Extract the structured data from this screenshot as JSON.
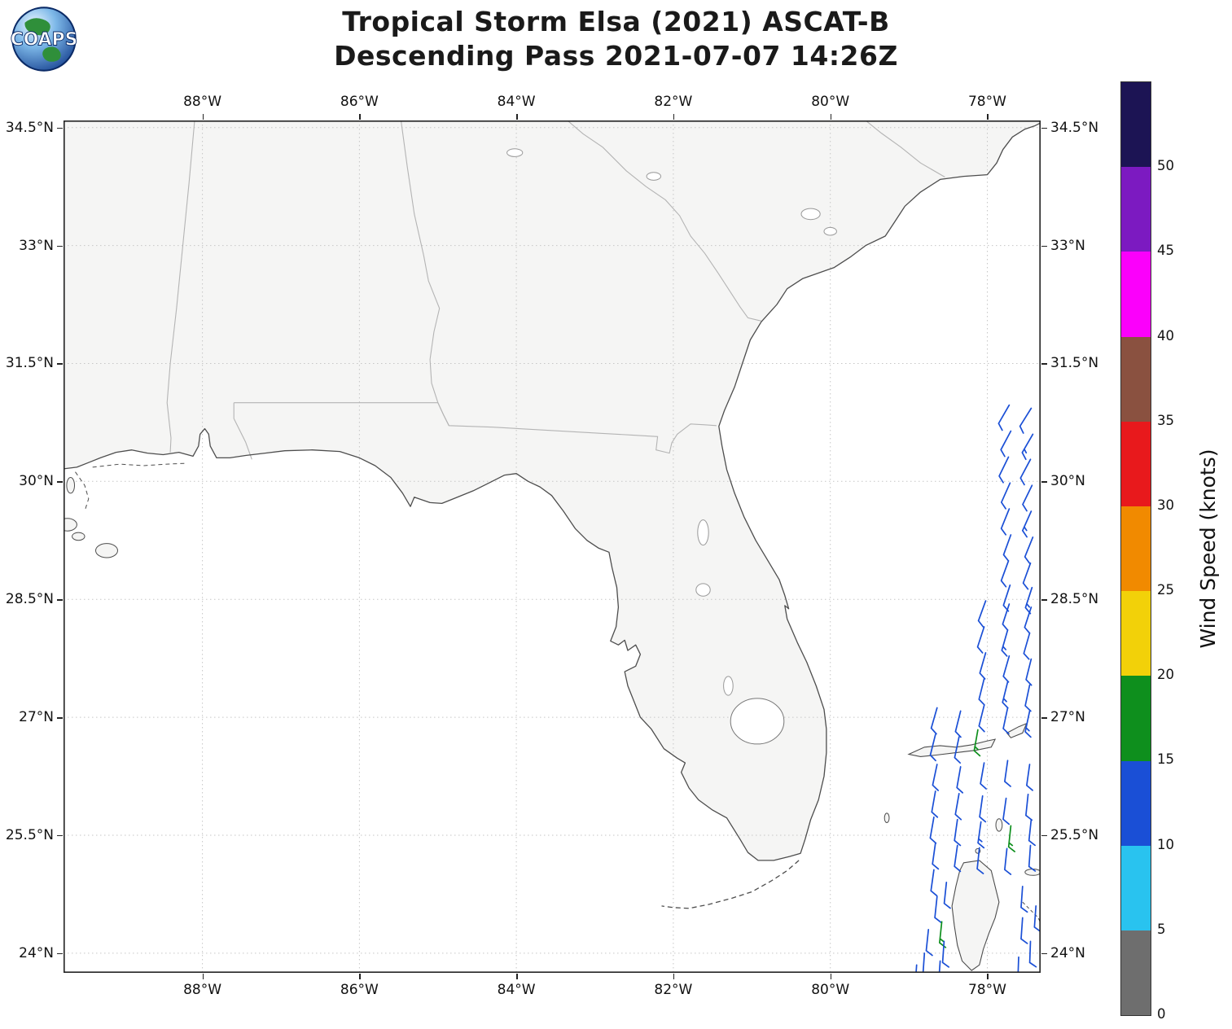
{
  "logo": {
    "text": "COAPS"
  },
  "title": {
    "line1": "Tropical Storm Elsa (2021) ASCAT-B",
    "line2": "Descending Pass 2021-07-07 14:26Z"
  },
  "map": {
    "extent": {
      "lon_min": -89.77,
      "lon_max": -77.32,
      "lat_min": 23.75,
      "lat_max": 34.59
    },
    "x_ticks": [
      {
        "label": "88°W",
        "value": -88
      },
      {
        "label": "86°W",
        "value": -86
      },
      {
        "label": "84°W",
        "value": -84
      },
      {
        "label": "82°W",
        "value": -82
      },
      {
        "label": "80°W",
        "value": -80
      },
      {
        "label": "78°W",
        "value": -78
      }
    ],
    "y_ticks": [
      {
        "label": "34.5°N",
        "value": 34.5
      },
      {
        "label": "33°N",
        "value": 33
      },
      {
        "label": "31.5°N",
        "value": 31.5
      },
      {
        "label": "30°N",
        "value": 30
      },
      {
        "label": "28.5°N",
        "value": 28.5
      },
      {
        "label": "27°N",
        "value": 27
      },
      {
        "label": "25.5°N",
        "value": 25.5
      },
      {
        "label": "24°N",
        "value": 24
      }
    ],
    "colors": {
      "land": "#f5f5f4",
      "ocean": "#ffffff",
      "coast": "#4d4d4d",
      "state_border": "#b4b4b4",
      "grid": "#c6c6c6",
      "frame": "#222222"
    }
  },
  "colorbar": {
    "title": "Wind Speed (knots)",
    "tick_labels": [
      "0",
      "5",
      "10",
      "15",
      "20",
      "25",
      "30",
      "35",
      "40",
      "45",
      "50"
    ],
    "band_colors_bottom_to_top": [
      "#6e6e6e",
      "#29c3ef",
      "#1a4fd6",
      "#0e8f1d",
      "#f2d109",
      "#f18a00",
      "#e8191c",
      "#8a5140",
      "#fb00fb",
      "#7c1ac1",
      "#1c1454"
    ]
  },
  "chart_data": {
    "type": "map-windbarbs",
    "title": "Tropical Storm Elsa (2021) ASCAT-B Descending Pass 2021-07-07 14:26Z",
    "barb_format": [
      "lon_deg",
      "lat_deg",
      "wind_from_dir_deg",
      "speed_knots"
    ],
    "barbs": [
      [
        -77.72,
        30.97,
        210,
        12
      ],
      [
        -77.44,
        30.93,
        212,
        12
      ],
      [
        -77.7,
        30.64,
        208,
        12
      ],
      [
        -77.42,
        30.6,
        210,
        13
      ],
      [
        -77.73,
        30.31,
        206,
        12
      ],
      [
        -77.45,
        30.28,
        208,
        12
      ],
      [
        -77.71,
        29.98,
        204,
        12
      ],
      [
        -77.43,
        29.95,
        206,
        12
      ],
      [
        -77.72,
        29.65,
        202,
        12
      ],
      [
        -77.44,
        29.62,
        204,
        13
      ],
      [
        -77.7,
        29.32,
        200,
        12
      ],
      [
        -77.42,
        29.29,
        202,
        12
      ],
      [
        -77.73,
        28.99,
        200,
        11
      ],
      [
        -77.45,
        28.96,
        200,
        12
      ],
      [
        -77.71,
        28.68,
        198,
        12
      ],
      [
        -77.43,
        28.65,
        198,
        13
      ],
      [
        -78.02,
        28.48,
        200,
        12
      ],
      [
        -77.72,
        28.44,
        198,
        12
      ],
      [
        -77.44,
        28.4,
        198,
        12
      ],
      [
        -78.04,
        28.15,
        198,
        12
      ],
      [
        -77.74,
        28.11,
        196,
        13
      ],
      [
        -77.46,
        28.07,
        196,
        12
      ],
      [
        -78.02,
        27.82,
        196,
        12
      ],
      [
        -77.72,
        27.78,
        196,
        12
      ],
      [
        -77.44,
        27.74,
        194,
        12
      ],
      [
        -78.04,
        27.49,
        194,
        12
      ],
      [
        -77.74,
        27.45,
        194,
        13
      ],
      [
        -77.46,
        27.41,
        192,
        12
      ],
      [
        -78.64,
        27.12,
        196,
        12
      ],
      [
        -78.34,
        27.08,
        194,
        12
      ],
      [
        -78.04,
        27.15,
        194,
        12
      ],
      [
        -77.74,
        27.12,
        192,
        12
      ],
      [
        -77.46,
        27.08,
        192,
        13
      ],
      [
        -78.66,
        26.78,
        194,
        12
      ],
      [
        -78.36,
        26.75,
        192,
        12
      ],
      [
        -78.12,
        26.84,
        190,
        16
      ],
      [
        -78.64,
        26.4,
        192,
        12
      ],
      [
        -78.34,
        26.37,
        190,
        12
      ],
      [
        -78.04,
        26.42,
        190,
        12
      ],
      [
        -77.74,
        26.45,
        188,
        12
      ],
      [
        -77.46,
        26.4,
        188,
        12
      ],
      [
        -78.66,
        26.06,
        190,
        12
      ],
      [
        -78.36,
        26.03,
        190,
        12
      ],
      [
        -78.06,
        26.0,
        188,
        12
      ],
      [
        -77.76,
        25.97,
        188,
        12
      ],
      [
        -77.48,
        26.02,
        186,
        12
      ],
      [
        -78.68,
        25.73,
        190,
        12
      ],
      [
        -78.38,
        25.7,
        188,
        12
      ],
      [
        -78.08,
        25.67,
        188,
        13
      ],
      [
        -77.7,
        25.62,
        186,
        17
      ],
      [
        -77.44,
        25.7,
        186,
        12
      ],
      [
        -78.66,
        25.4,
        188,
        12
      ],
      [
        -78.38,
        25.37,
        188,
        12
      ],
      [
        -78.1,
        25.34,
        186,
        12
      ],
      [
        -77.75,
        25.33,
        186,
        12
      ],
      [
        -77.45,
        25.37,
        184,
        12
      ],
      [
        -78.68,
        25.06,
        188,
        12
      ],
      [
        -78.52,
        24.9,
        186,
        12
      ],
      [
        -77.55,
        24.85,
        184,
        12
      ],
      [
        -78.64,
        24.72,
        186,
        12
      ],
      [
        -77.38,
        24.6,
        184,
        12
      ],
      [
        -78.58,
        24.4,
        186,
        16
      ],
      [
        -78.75,
        24.3,
        186,
        12
      ],
      [
        -78.55,
        24.15,
        184,
        12
      ],
      [
        -77.55,
        24.45,
        184,
        12
      ],
      [
        -78.8,
        24.0,
        184,
        12
      ],
      [
        -78.6,
        23.9,
        184,
        12
      ],
      [
        -78.9,
        23.85,
        184,
        12
      ],
      [
        -77.45,
        24.15,
        182,
        12
      ],
      [
        -77.6,
        23.95,
        182,
        13
      ]
    ]
  }
}
